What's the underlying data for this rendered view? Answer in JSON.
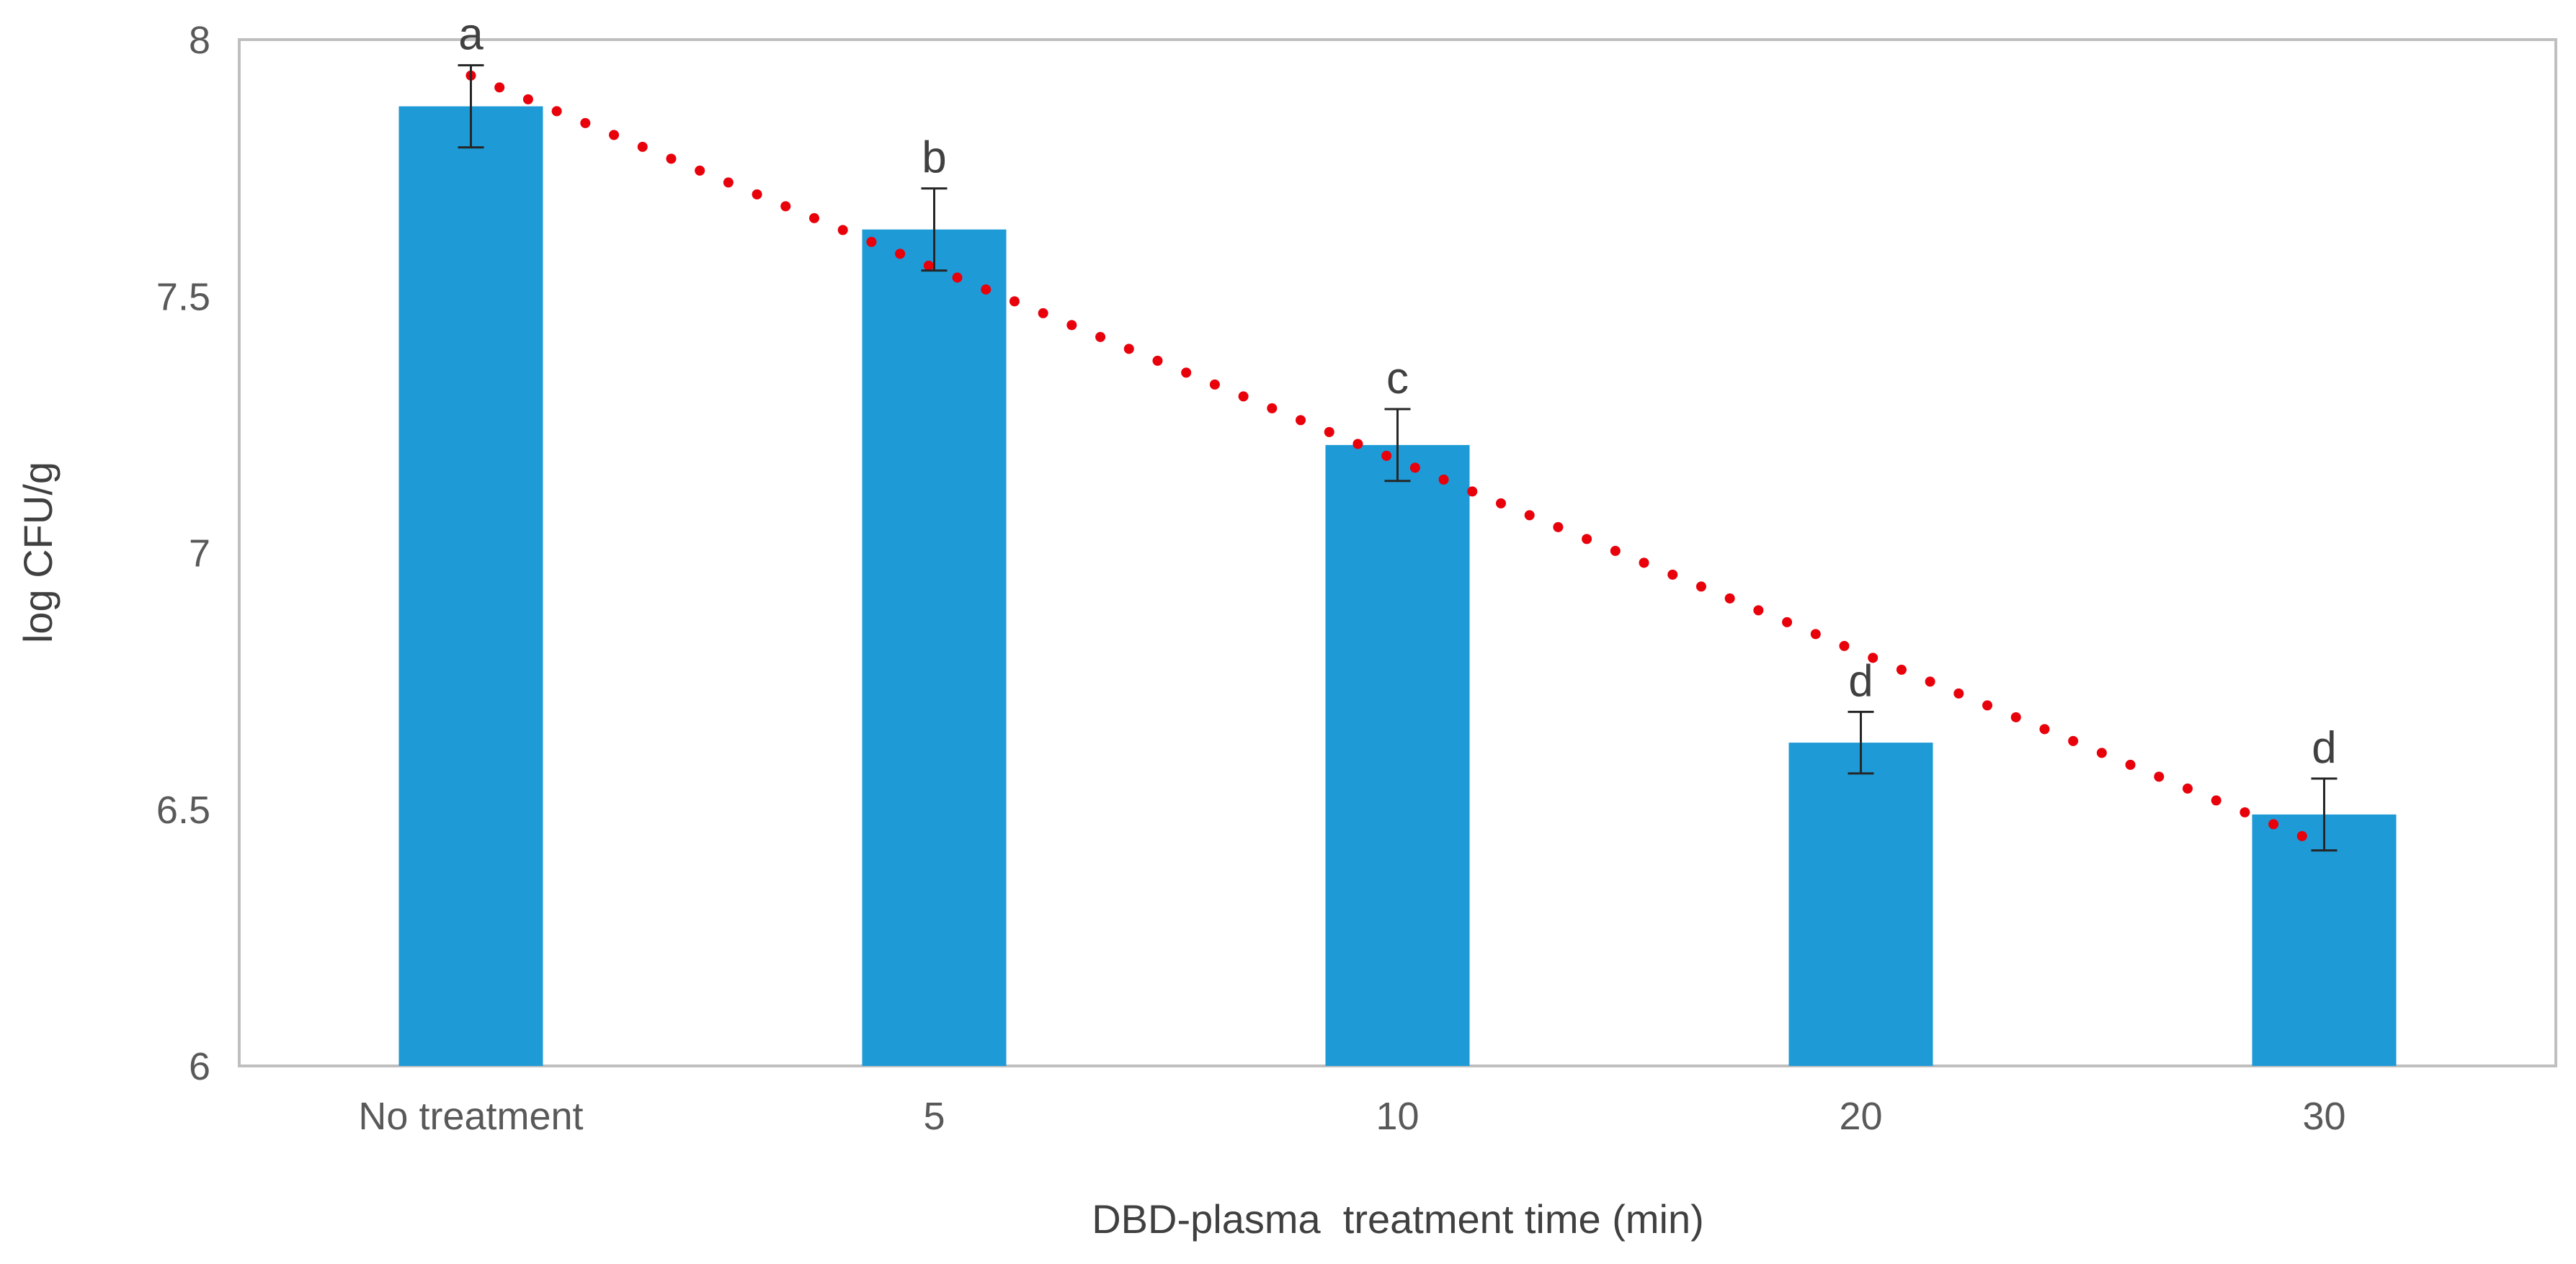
{
  "chart_data": {
    "type": "bar",
    "title": "",
    "xlabel": "DBD-plasma  treatment time (min)",
    "ylabel": "log CFU/g",
    "ylim": [
      6,
      8
    ],
    "yticks": [
      "6",
      "6.5",
      "7",
      "7.5",
      "8"
    ],
    "ytick_values": [
      6,
      6.5,
      7,
      7.5,
      8
    ],
    "grid": false,
    "categories": [
      "No treatment",
      "5",
      "10",
      "20",
      "30"
    ],
    "values": [
      7.87,
      7.63,
      7.21,
      6.63,
      6.49
    ],
    "errors": [
      0.08,
      0.08,
      0.07,
      0.06,
      0.07
    ],
    "significance_labels": [
      "a",
      "b",
      "c",
      "d",
      "d"
    ],
    "trendline": {
      "type": "linear",
      "style": "dotted",
      "start_value": 7.93,
      "end_value": 6.43
    },
    "colors": {
      "bar": "#1E9AD6",
      "trendline": "#E8000B",
      "axis": "#BFBFBF",
      "error_bar": "#262626"
    }
  }
}
